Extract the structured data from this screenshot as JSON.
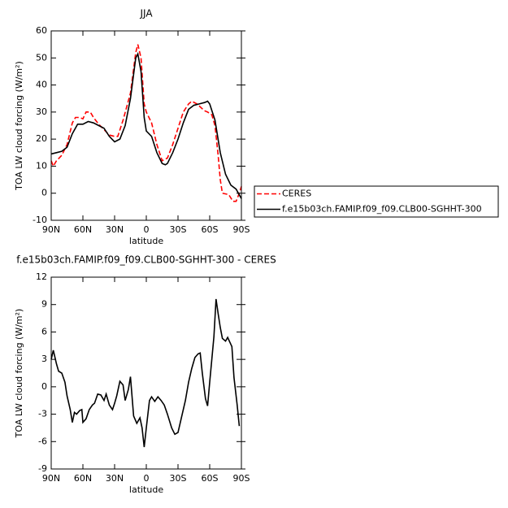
{
  "chart_data": [
    {
      "type": "line",
      "title": "JJA",
      "x_label": "latitude",
      "y_label": "TOA LW cloud forcing (W/m²)",
      "xlim": [
        90,
        -90
      ],
      "xticks": [
        {
          "value": 90,
          "label": "90N"
        },
        {
          "value": 60,
          "label": "60N"
        },
        {
          "value": 30,
          "label": "30N"
        },
        0,
        {
          "value": -30,
          "label": "30S"
        },
        {
          "value": -60,
          "label": "60S"
        },
        {
          "value": -90,
          "label": "90S"
        }
      ],
      "ylim": [
        -10,
        60
      ],
      "yticks": [
        -10,
        0,
        10,
        20,
        30,
        40,
        50,
        60
      ],
      "legend": "right",
      "series": [
        {
          "name": "CERES",
          "color": "#ff0000",
          "dash": "dashed",
          "x": [
            90,
            88,
            85,
            80,
            75,
            70,
            67,
            63,
            60,
            57,
            53,
            50,
            45,
            40,
            35,
            30,
            27,
            22,
            15,
            10,
            8,
            5,
            2,
            0,
            -5,
            -10,
            -15,
            -20,
            -25,
            -30,
            -35,
            -40,
            -43,
            -48,
            -55,
            -58,
            -62,
            -65,
            -68,
            -70,
            -72,
            -78,
            -82,
            -85,
            -88,
            -90
          ],
          "values": [
            12,
            10,
            12,
            14,
            18,
            26,
            28,
            28,
            27.5,
            30,
            30,
            28,
            25.5,
            23.5,
            21.5,
            21,
            21,
            27,
            37,
            52,
            55,
            50,
            33,
            30,
            26,
            18,
            12,
            13,
            18,
            24,
            30,
            33,
            34,
            33,
            30.5,
            30,
            29,
            25,
            14,
            5,
            0,
            -0.5,
            -3,
            -3,
            0,
            2.5
          ]
        },
        {
          "name": "f.e15b03ch.FAMIP.f09_f09.CLB00-SGHHT-300",
          "color": "#000000",
          "dash": "solid",
          "x": [
            90,
            85,
            80,
            75,
            70,
            65,
            60,
            55,
            50,
            45,
            40,
            35,
            30,
            25,
            20,
            15,
            10,
            8,
            5,
            2,
            0,
            -5,
            -10,
            -15,
            -18,
            -20,
            -25,
            -30,
            -35,
            -40,
            -45,
            -50,
            -55,
            -58,
            -60,
            -65,
            -70,
            -75,
            -80,
            -85,
            -90
          ],
          "values": [
            14.5,
            15,
            15.5,
            17,
            22,
            25.5,
            25.5,
            26.5,
            26,
            25,
            24,
            21,
            19,
            20,
            25,
            35,
            50,
            51.5,
            45,
            28,
            23,
            21,
            15,
            11,
            10.5,
            11,
            15,
            20,
            26,
            31,
            32.5,
            33,
            33.5,
            34,
            33,
            27,
            15,
            7,
            3,
            1.5,
            -2
          ]
        }
      ]
    },
    {
      "type": "line",
      "title": "f.e15b03ch.FAMIP.f09_f09.CLB00-SGHHT-300 - CERES",
      "x_label": "latitude",
      "y_label": "TOA LW cloud forcing (W/m²)",
      "xlim": [
        90,
        -90
      ],
      "xticks": [
        {
          "value": 90,
          "label": "90N"
        },
        {
          "value": 60,
          "label": "60N"
        },
        {
          "value": 30,
          "label": "30N"
        },
        0,
        {
          "value": -30,
          "label": "30S"
        },
        {
          "value": -60,
          "label": "60S"
        },
        {
          "value": -90,
          "label": "90S"
        }
      ],
      "ylim": [
        -9,
        12
      ],
      "yticks": [
        -9,
        -6,
        -3,
        0,
        3,
        6,
        9,
        12
      ],
      "series": [
        {
          "color": "#000000",
          "dash": "solid",
          "x": [
            90,
            88,
            85,
            83,
            80,
            77,
            75,
            72,
            70,
            68,
            66,
            63,
            61,
            60,
            57,
            54,
            51,
            49,
            46,
            43,
            40,
            38,
            35,
            32,
            30,
            28,
            25,
            22,
            20,
            17,
            15,
            12,
            9,
            6,
            4,
            2,
            0,
            -3,
            -5,
            -8,
            -11,
            -14,
            -17,
            -20,
            -24,
            -27,
            -30,
            -33,
            -37,
            -40,
            -43,
            -46,
            -49,
            -51,
            -53,
            -56,
            -58,
            -60,
            -62,
            -64,
            -66,
            -68,
            -70,
            -72,
            -75,
            -77,
            -79,
            -81,
            -83,
            -86,
            -88
          ],
          "values": [
            3,
            4,
            2.5,
            1.7,
            1.5,
            0.5,
            -1,
            -2.5,
            -3.9,
            -2.8,
            -3,
            -2.6,
            -2.5,
            -3.9,
            -3.5,
            -2.5,
            -2,
            -1.8,
            -0.8,
            -0.9,
            -1.5,
            -0.8,
            -2,
            -2.5,
            -1.8,
            -1,
            0.6,
            0.2,
            -1.5,
            -0.3,
            1.1,
            -3.2,
            -4,
            -3.4,
            -4.5,
            -6.6,
            -4.5,
            -1.5,
            -1.1,
            -1.6,
            -1.1,
            -1.5,
            -2,
            -3,
            -4.5,
            -5.2,
            -5,
            -3.5,
            -1.5,
            0.5,
            2,
            3.2,
            3.6,
            3.7,
            1.5,
            -1.3,
            -2.1,
            0.5,
            3,
            5.5,
            9.6,
            8,
            6.5,
            5.3,
            5,
            5.4,
            4.9,
            4.4,
            1,
            -2,
            -4.3
          ]
        }
      ]
    }
  ]
}
